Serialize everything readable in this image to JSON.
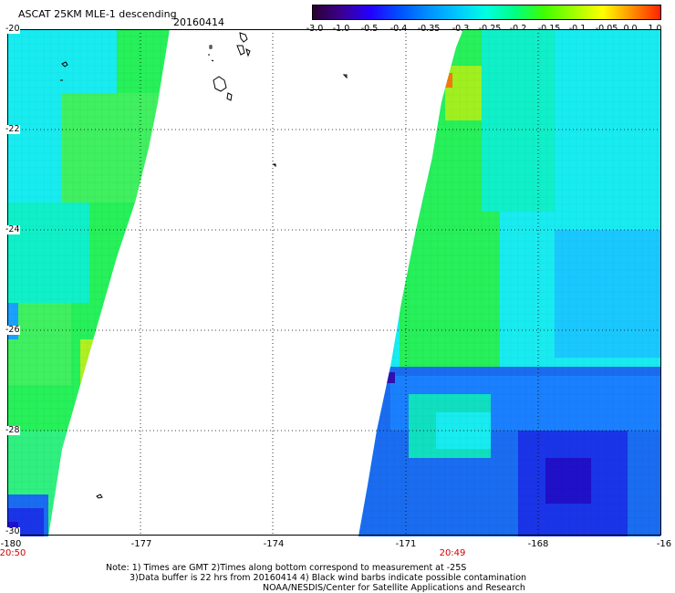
{
  "header": {
    "title": "ASCAT 25KM MLE-1 descending",
    "date": "20160414"
  },
  "colorbar": {
    "labels": [
      "-3.0",
      "-1.0",
      "-0.5",
      "-0.4",
      "-0.35",
      "-0.3",
      "-0.25",
      "-0.2",
      "-0.15",
      "-0.1",
      "-0.05",
      "0.0",
      "1.0"
    ],
    "colors": [
      "#2a0030",
      "#3a0090",
      "#2400ff",
      "#0050ff",
      "#0090ff",
      "#00c8ff",
      "#00ffe0",
      "#00ff80",
      "#40ff00",
      "#a0ff00",
      "#ffff00",
      "#ff9000",
      "#ff2000"
    ]
  },
  "map": {
    "lat_labels": [
      "-20",
      "-22",
      "-24",
      "-26",
      "-28",
      "-30"
    ],
    "lon_labels": [
      "-180",
      "-177",
      "-174",
      "-171",
      "-168",
      "-16"
    ],
    "time_labels": [
      "20:50",
      "20:49"
    ],
    "lat_range": [
      -30,
      -20
    ],
    "lon_range": [
      -180,
      -165
    ],
    "swath_colors": {
      "green": "#26f05a",
      "teal": "#10f0c8",
      "cyan": "#18ecf0",
      "light_blue": "#1aa0ff",
      "blue": "#1a6cf0",
      "dark_blue": "#1a34e8",
      "purple": "#2010c8",
      "yellow": "#f0e600",
      "orange": "#f07a10"
    }
  },
  "notes": {
    "line1": "Note: 1) Times are GMT 2)Times along bottom correspond to measurement at -25S",
    "line2": "3)Data buffer is 22 hrs from 20160414 4) Black wind barbs indicate possible contamination",
    "line3": "NOAA/NESDIS/Center for Satellite Applications and Research"
  }
}
